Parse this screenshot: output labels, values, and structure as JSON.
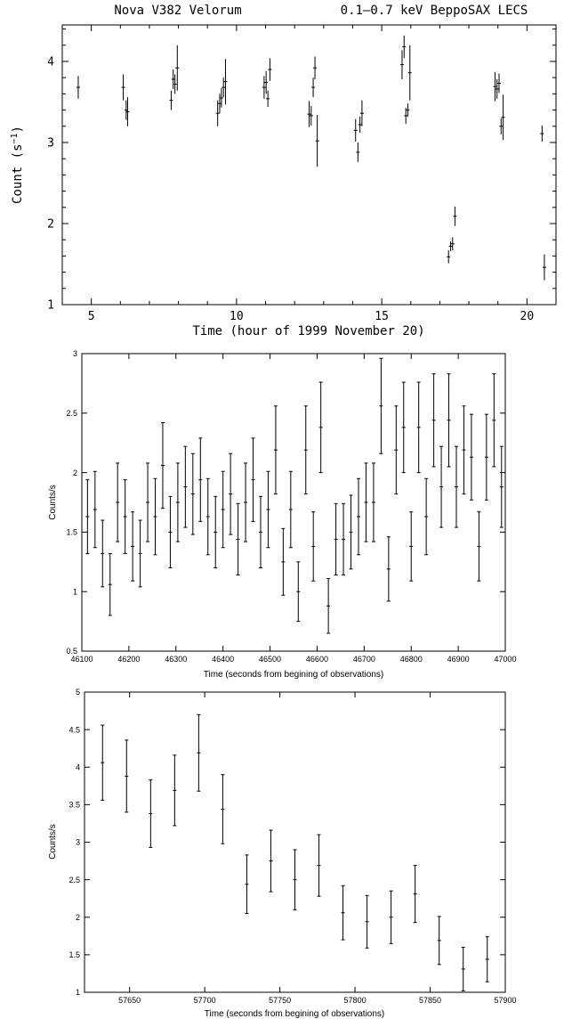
{
  "chart_data": [
    {
      "type": "scatter",
      "title_left": "Nova V382 Velorum",
      "title_right": "0.1–0.7 keV BeppoSAX LECS",
      "xlabel": "Time (hour of 1999 November 20)",
      "ylabel": "Count (s",
      "ylabel_sup": "−1",
      "ylabel_close": ")",
      "xlim": [
        4.0,
        21.0
      ],
      "ylim": [
        1.0,
        4.45
      ],
      "xticks": [
        5,
        10,
        15,
        20
      ],
      "yticks": [
        1,
        2,
        3,
        4
      ],
      "points": [
        {
          "x": 4.55,
          "y": 3.68,
          "err": 0.14
        },
        {
          "x": 6.1,
          "y": 3.68,
          "err": 0.16
        },
        {
          "x": 6.2,
          "y": 3.4,
          "err": 0.12
        },
        {
          "x": 6.25,
          "y": 3.38,
          "err": 0.18
        },
        {
          "x": 7.75,
          "y": 3.52,
          "err": 0.12
        },
        {
          "x": 7.82,
          "y": 3.78,
          "err": 0.12
        },
        {
          "x": 7.88,
          "y": 3.72,
          "err": 0.12
        },
        {
          "x": 7.96,
          "y": 3.92,
          "err": 0.28
        },
        {
          "x": 9.35,
          "y": 3.36,
          "err": 0.16
        },
        {
          "x": 9.42,
          "y": 3.48,
          "err": 0.12
        },
        {
          "x": 9.48,
          "y": 3.55,
          "err": 0.12
        },
        {
          "x": 9.55,
          "y": 3.68,
          "err": 0.12
        },
        {
          "x": 9.62,
          "y": 3.75,
          "err": 0.28
        },
        {
          "x": 10.95,
          "y": 3.68,
          "err": 0.14
        },
        {
          "x": 11.02,
          "y": 3.74,
          "err": 0.14
        },
        {
          "x": 11.08,
          "y": 3.54,
          "err": 0.1
        },
        {
          "x": 11.15,
          "y": 3.9,
          "err": 0.14
        },
        {
          "x": 12.5,
          "y": 3.35,
          "err": 0.16
        },
        {
          "x": 12.57,
          "y": 3.33,
          "err": 0.12
        },
        {
          "x": 12.64,
          "y": 3.68,
          "err": 0.12
        },
        {
          "x": 12.7,
          "y": 3.92,
          "err": 0.14
        },
        {
          "x": 12.78,
          "y": 3.02,
          "err": 0.32
        },
        {
          "x": 14.1,
          "y": 3.15,
          "err": 0.14
        },
        {
          "x": 14.18,
          "y": 2.88,
          "err": 0.12
        },
        {
          "x": 14.25,
          "y": 3.22,
          "err": 0.1
        },
        {
          "x": 14.32,
          "y": 3.36,
          "err": 0.16
        },
        {
          "x": 15.7,
          "y": 3.96,
          "err": 0.18
        },
        {
          "x": 15.77,
          "y": 4.18,
          "err": 0.14
        },
        {
          "x": 15.83,
          "y": 3.33,
          "err": 0.1
        },
        {
          "x": 15.9,
          "y": 3.4,
          "err": 0.08
        },
        {
          "x": 15.97,
          "y": 3.86,
          "err": 0.34
        },
        {
          "x": 17.3,
          "y": 1.59,
          "err": 0.08
        },
        {
          "x": 17.37,
          "y": 1.72,
          "err": 0.06
        },
        {
          "x": 17.44,
          "y": 1.75,
          "err": 0.08
        },
        {
          "x": 17.52,
          "y": 2.09,
          "err": 0.12
        },
        {
          "x": 18.9,
          "y": 3.69,
          "err": 0.18
        },
        {
          "x": 18.97,
          "y": 3.66,
          "err": 0.12
        },
        {
          "x": 19.04,
          "y": 3.73,
          "err": 0.12
        },
        {
          "x": 19.11,
          "y": 3.2,
          "err": 0.1
        },
        {
          "x": 19.18,
          "y": 3.31,
          "err": 0.28
        },
        {
          "x": 20.52,
          "y": 3.11,
          "err": 0.1
        },
        {
          "x": 20.6,
          "y": 1.46,
          "err": 0.16
        }
      ]
    },
    {
      "type": "scatter",
      "xlabel": "Time (seconds from begining of observations)",
      "ylabel": "Counts/s",
      "xlim": [
        46100,
        47000
      ],
      "ylim": [
        0.5,
        3.0
      ],
      "xticks": [
        46100,
        46200,
        46300,
        46400,
        46500,
        46600,
        46700,
        46800,
        46900,
        47000
      ],
      "xticklabels": [
        "46100",
        "46200",
        "46300",
        "46400",
        "46500",
        "46600",
        "46700",
        "46800",
        "46900",
        "47000"
      ],
      "yticks": [
        0.5,
        1,
        1.5,
        2,
        2.5,
        3
      ],
      "yticklabels": [
        "0.5",
        "1",
        "1.5",
        "2",
        "2.5",
        "3"
      ],
      "points": [
        {
          "x": 46112,
          "y": 1.63,
          "err": 0.31
        },
        {
          "x": 46128,
          "y": 1.69,
          "err": 0.32
        },
        {
          "x": 46144,
          "y": 1.32,
          "err": 0.28
        },
        {
          "x": 46160,
          "y": 1.06,
          "err": 0.26
        },
        {
          "x": 46176,
          "y": 1.75,
          "err": 0.33
        },
        {
          "x": 46192,
          "y": 1.63,
          "err": 0.31
        },
        {
          "x": 46208,
          "y": 1.38,
          "err": 0.29
        },
        {
          "x": 46224,
          "y": 1.32,
          "err": 0.28
        },
        {
          "x": 46240,
          "y": 1.75,
          "err": 0.33
        },
        {
          "x": 46256,
          "y": 1.63,
          "err": 0.32
        },
        {
          "x": 46272,
          "y": 2.06,
          "err": 0.36
        },
        {
          "x": 46288,
          "y": 1.5,
          "err": 0.3
        },
        {
          "x": 46304,
          "y": 1.75,
          "err": 0.33
        },
        {
          "x": 46320,
          "y": 1.88,
          "err": 0.34
        },
        {
          "x": 46336,
          "y": 1.82,
          "err": 0.34
        },
        {
          "x": 46352,
          "y": 1.94,
          "err": 0.35
        },
        {
          "x": 46368,
          "y": 1.63,
          "err": 0.32
        },
        {
          "x": 46384,
          "y": 1.5,
          "err": 0.3
        },
        {
          "x": 46400,
          "y": 1.69,
          "err": 0.32
        },
        {
          "x": 46416,
          "y": 1.82,
          "err": 0.34
        },
        {
          "x": 46432,
          "y": 1.44,
          "err": 0.3
        },
        {
          "x": 46448,
          "y": 1.75,
          "err": 0.33
        },
        {
          "x": 46464,
          "y": 1.94,
          "err": 0.35
        },
        {
          "x": 46480,
          "y": 1.5,
          "err": 0.3
        },
        {
          "x": 46496,
          "y": 1.69,
          "err": 0.32
        },
        {
          "x": 46512,
          "y": 2.19,
          "err": 0.37
        },
        {
          "x": 46528,
          "y": 1.25,
          "err": 0.28
        },
        {
          "x": 46544,
          "y": 1.69,
          "err": 0.32
        },
        {
          "x": 46560,
          "y": 1.0,
          "err": 0.25
        },
        {
          "x": 46576,
          "y": 2.19,
          "err": 0.37
        },
        {
          "x": 46592,
          "y": 1.38,
          "err": 0.29
        },
        {
          "x": 46608,
          "y": 2.38,
          "err": 0.38
        },
        {
          "x": 46624,
          "y": 0.88,
          "err": 0.23
        },
        {
          "x": 46640,
          "y": 1.44,
          "err": 0.3
        },
        {
          "x": 46656,
          "y": 1.44,
          "err": 0.3
        },
        {
          "x": 46672,
          "y": 1.5,
          "err": 0.31
        },
        {
          "x": 46688,
          "y": 1.63,
          "err": 0.32
        },
        {
          "x": 46704,
          "y": 1.75,
          "err": 0.33
        },
        {
          "x": 46720,
          "y": 1.75,
          "err": 0.33
        },
        {
          "x": 46736,
          "y": 2.56,
          "err": 0.4
        },
        {
          "x": 46752,
          "y": 1.19,
          "err": 0.27
        },
        {
          "x": 46768,
          "y": 2.19,
          "err": 0.37
        },
        {
          "x": 46784,
          "y": 2.38,
          "err": 0.38
        },
        {
          "x": 46800,
          "y": 1.38,
          "err": 0.29
        },
        {
          "x": 46816,
          "y": 2.38,
          "err": 0.38
        },
        {
          "x": 46832,
          "y": 1.63,
          "err": 0.32
        },
        {
          "x": 46848,
          "y": 2.44,
          "err": 0.39
        },
        {
          "x": 46864,
          "y": 1.88,
          "err": 0.34
        },
        {
          "x": 46880,
          "y": 2.44,
          "err": 0.39
        },
        {
          "x": 46896,
          "y": 1.88,
          "err": 0.34
        },
        {
          "x": 46912,
          "y": 2.19,
          "err": 0.37
        },
        {
          "x": 46928,
          "y": 2.13,
          "err": 0.36
        },
        {
          "x": 46944,
          "y": 1.38,
          "err": 0.29
        },
        {
          "x": 46960,
          "y": 2.13,
          "err": 0.36
        },
        {
          "x": 46976,
          "y": 2.44,
          "err": 0.39
        },
        {
          "x": 46992,
          "y": 1.88,
          "err": 0.34
        }
      ]
    },
    {
      "type": "scatter",
      "xlabel": "Time (seconds from begining of observations)",
      "ylabel": "Counts/s",
      "xlim": [
        57620,
        57900
      ],
      "ylim": [
        1.0,
        5.0
      ],
      "xticks": [
        57650,
        57700,
        57750,
        57800,
        57850,
        57900
      ],
      "xticklabels": [
        "57650",
        "57700",
        "57750",
        "57800",
        "57850",
        "57900"
      ],
      "yticks": [
        1,
        1.5,
        2,
        2.5,
        3,
        3.5,
        4,
        4.5,
        5
      ],
      "yticklabels": [
        "1",
        "1.5",
        "2",
        "2.5",
        "3",
        "3.5",
        "4",
        "4.5",
        "5"
      ],
      "points": [
        {
          "x": 57632,
          "y": 4.06,
          "err": 0.5
        },
        {
          "x": 57648,
          "y": 3.88,
          "err": 0.48
        },
        {
          "x": 57664,
          "y": 3.38,
          "err": 0.45
        },
        {
          "x": 57680,
          "y": 3.69,
          "err": 0.47
        },
        {
          "x": 57696,
          "y": 4.19,
          "err": 0.51
        },
        {
          "x": 57712,
          "y": 3.44,
          "err": 0.46
        },
        {
          "x": 57728,
          "y": 2.44,
          "err": 0.39
        },
        {
          "x": 57744,
          "y": 2.75,
          "err": 0.41
        },
        {
          "x": 57760,
          "y": 2.5,
          "err": 0.4
        },
        {
          "x": 57776,
          "y": 2.69,
          "err": 0.41
        },
        {
          "x": 57792,
          "y": 2.06,
          "err": 0.36
        },
        {
          "x": 57808,
          "y": 1.94,
          "err": 0.35
        },
        {
          "x": 57824,
          "y": 2.0,
          "err": 0.35
        },
        {
          "x": 57840,
          "y": 2.31,
          "err": 0.38
        },
        {
          "x": 57856,
          "y": 1.69,
          "err": 0.32
        },
        {
          "x": 57872,
          "y": 1.31,
          "err": 0.29
        },
        {
          "x": 57888,
          "y": 1.44,
          "err": 0.3
        }
      ]
    }
  ]
}
